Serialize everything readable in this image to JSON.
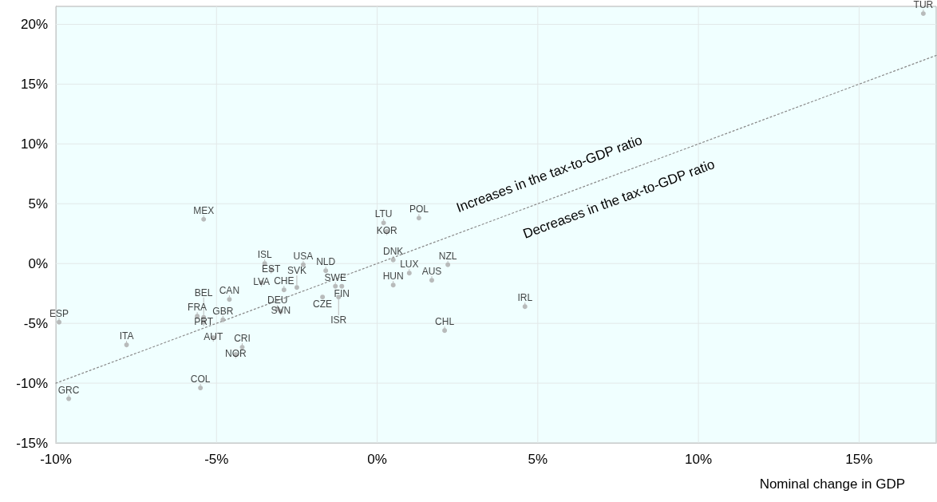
{
  "chart_data": {
    "type": "scatter",
    "xlabel": "Nominal change in GDP",
    "marker": "circle",
    "grid": true,
    "xlim": [
      -10,
      17.4
    ],
    "ylim": [
      -15,
      21.5
    ],
    "xticks": [
      {
        "value": -10,
        "label": "-10%"
      },
      {
        "value": -5,
        "label": "-5%"
      },
      {
        "value": 0,
        "label": "0%"
      },
      {
        "value": 5,
        "label": "5%"
      },
      {
        "value": 10,
        "label": "10%"
      },
      {
        "value": 15,
        "label": "15%"
      }
    ],
    "yticks": [
      {
        "value": -15,
        "label": "-15%"
      },
      {
        "value": -10,
        "label": "-10%"
      },
      {
        "value": -5,
        "label": "-5%"
      },
      {
        "value": 0,
        "label": "0%"
      },
      {
        "value": 5,
        "label": "5%"
      },
      {
        "value": 10,
        "label": "10%"
      },
      {
        "value": 15,
        "label": "15%"
      },
      {
        "value": 20,
        "label": "20%"
      }
    ],
    "annotations": [
      "Increases in the tax-to-GDP ratio",
      "Decreases in the tax-to-GDP ratio"
    ],
    "series": [
      {
        "type": "line",
        "color": "#888888",
        "line_style": "dotted",
        "marker": "none",
        "x": [
          -10,
          17.4
        ],
        "values": [
          -10,
          17.4
        ]
      },
      {
        "color": "#aaaaaa",
        "x": [
          -5.4,
          -3.5,
          -3.3,
          -2.3,
          -1.6,
          -3.6,
          -2.9,
          -2.5,
          -1.3,
          -1.1,
          -1.7,
          -1.2,
          -3.1,
          -3,
          -4.6,
          -5.6,
          -5.4,
          -5.4,
          -4.8,
          -9.9,
          -5.1,
          -7.8,
          -4.2,
          -4.4,
          -5.5,
          -9.6,
          0.2,
          0.3,
          1.3,
          0.5,
          2.2,
          1,
          0.5,
          1.7,
          4.6,
          2.1,
          17
        ],
        "values": [
          3.7,
          0,
          -0.5,
          -0.1,
          -0.6,
          -1.6,
          -2.2,
          -2,
          -1.9,
          -1.9,
          -2.8,
          -2.8,
          -3.8,
          -4,
          -3,
          -4.4,
          -4.5,
          -4.9,
          -4.7,
          -4.9,
          -6.2,
          -6.8,
          -7,
          -7.6,
          -10.4,
          -11.3,
          3.4,
          2.7,
          3.8,
          0.3,
          -0.1,
          -0.8,
          -1.8,
          -1.4,
          -3.6,
          -5.6,
          20.9
        ],
        "value_labels": [
          "MEX",
          "ISL",
          "EST",
          "USA",
          "NLD",
          "LVA",
          "CHE",
          "SVK",
          "SWE",
          "FIN",
          "CZE",
          "ISR",
          "DEU",
          "SVN",
          "CAN",
          "FRA",
          "BEL",
          "PRT",
          "GBR",
          "ESP",
          "AUT",
          "ITA",
          "CRI",
          "NOR",
          "COL",
          "GRC",
          "LTU",
          "KOR",
          "POL",
          "DNK",
          "NZL",
          "LUX",
          "HUN",
          "AUS",
          "IRL",
          "CHL",
          "TUR"
        ]
      }
    ]
  }
}
